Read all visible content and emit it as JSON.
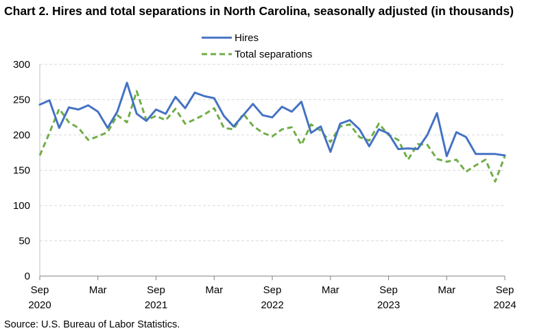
{
  "chart_data": {
    "type": "line",
    "title": "Chart 2. Hires and total separations in North Carolina, seasonally adjusted (in thousands)",
    "source": "Source: U.S. Bureau of Labor Statistics.",
    "xlabel": "",
    "ylabel": "",
    "ylim": [
      0,
      300
    ],
    "yticks": [
      "0",
      "50",
      "100",
      "150",
      "200",
      "250",
      "300"
    ],
    "grid": true,
    "legend_position": "top-center",
    "x": [
      "2020-09",
      "2020-10",
      "2020-11",
      "2020-12",
      "2021-01",
      "2021-02",
      "2021-03",
      "2021-04",
      "2021-05",
      "2021-06",
      "2021-07",
      "2021-08",
      "2021-09",
      "2021-10",
      "2021-11",
      "2021-12",
      "2022-01",
      "2022-02",
      "2022-03",
      "2022-04",
      "2022-05",
      "2022-06",
      "2022-07",
      "2022-08",
      "2022-09",
      "2022-10",
      "2022-11",
      "2022-12",
      "2023-01",
      "2023-02",
      "2023-03",
      "2023-04",
      "2023-05",
      "2023-06",
      "2023-07",
      "2023-08",
      "2023-09",
      "2023-10",
      "2023-11",
      "2023-12",
      "2024-01",
      "2024-02",
      "2024-03",
      "2024-04",
      "2024-05",
      "2024-06",
      "2024-07",
      "2024-08",
      "2024-09"
    ],
    "x_tick_labels": [
      {
        "index": 0,
        "month": "Sep",
        "year": "2020"
      },
      {
        "index": 6,
        "month": "Mar",
        "year": ""
      },
      {
        "index": 12,
        "month": "Sep",
        "year": "2021"
      },
      {
        "index": 18,
        "month": "Mar",
        "year": ""
      },
      {
        "index": 24,
        "month": "Sep",
        "year": "2022"
      },
      {
        "index": 30,
        "month": "Mar",
        "year": ""
      },
      {
        "index": 36,
        "month": "Sep",
        "year": "2023"
      },
      {
        "index": 42,
        "month": "Mar",
        "year": ""
      },
      {
        "index": 48,
        "month": "Sep",
        "year": "2024"
      }
    ],
    "series": [
      {
        "name": "Hires",
        "color": "#4472c4",
        "style": "solid",
        "values": [
          243,
          249,
          210,
          239,
          236,
          242,
          233,
          210,
          233,
          274,
          230,
          220,
          236,
          230,
          254,
          238,
          260,
          255,
          252,
          227,
          212,
          228,
          244,
          228,
          225,
          240,
          233,
          247,
          203,
          212,
          176,
          216,
          221,
          208,
          184,
          208,
          202,
          180,
          181,
          180,
          200,
          231,
          170,
          204,
          197,
          173,
          173,
          173,
          171
        ]
      },
      {
        "name": "Total separations",
        "color": "#70ad47",
        "style": "dashed",
        "values": [
          171,
          203,
          237,
          218,
          210,
          193,
          198,
          204,
          228,
          218,
          262,
          221,
          227,
          221,
          237,
          216,
          222,
          229,
          238,
          210,
          208,
          230,
          213,
          203,
          198,
          208,
          211,
          186,
          215,
          206,
          190,
          212,
          215,
          197,
          192,
          216,
          200,
          193,
          165,
          187,
          186,
          166,
          162,
          165,
          148,
          157,
          165,
          134,
          170
        ]
      }
    ]
  }
}
